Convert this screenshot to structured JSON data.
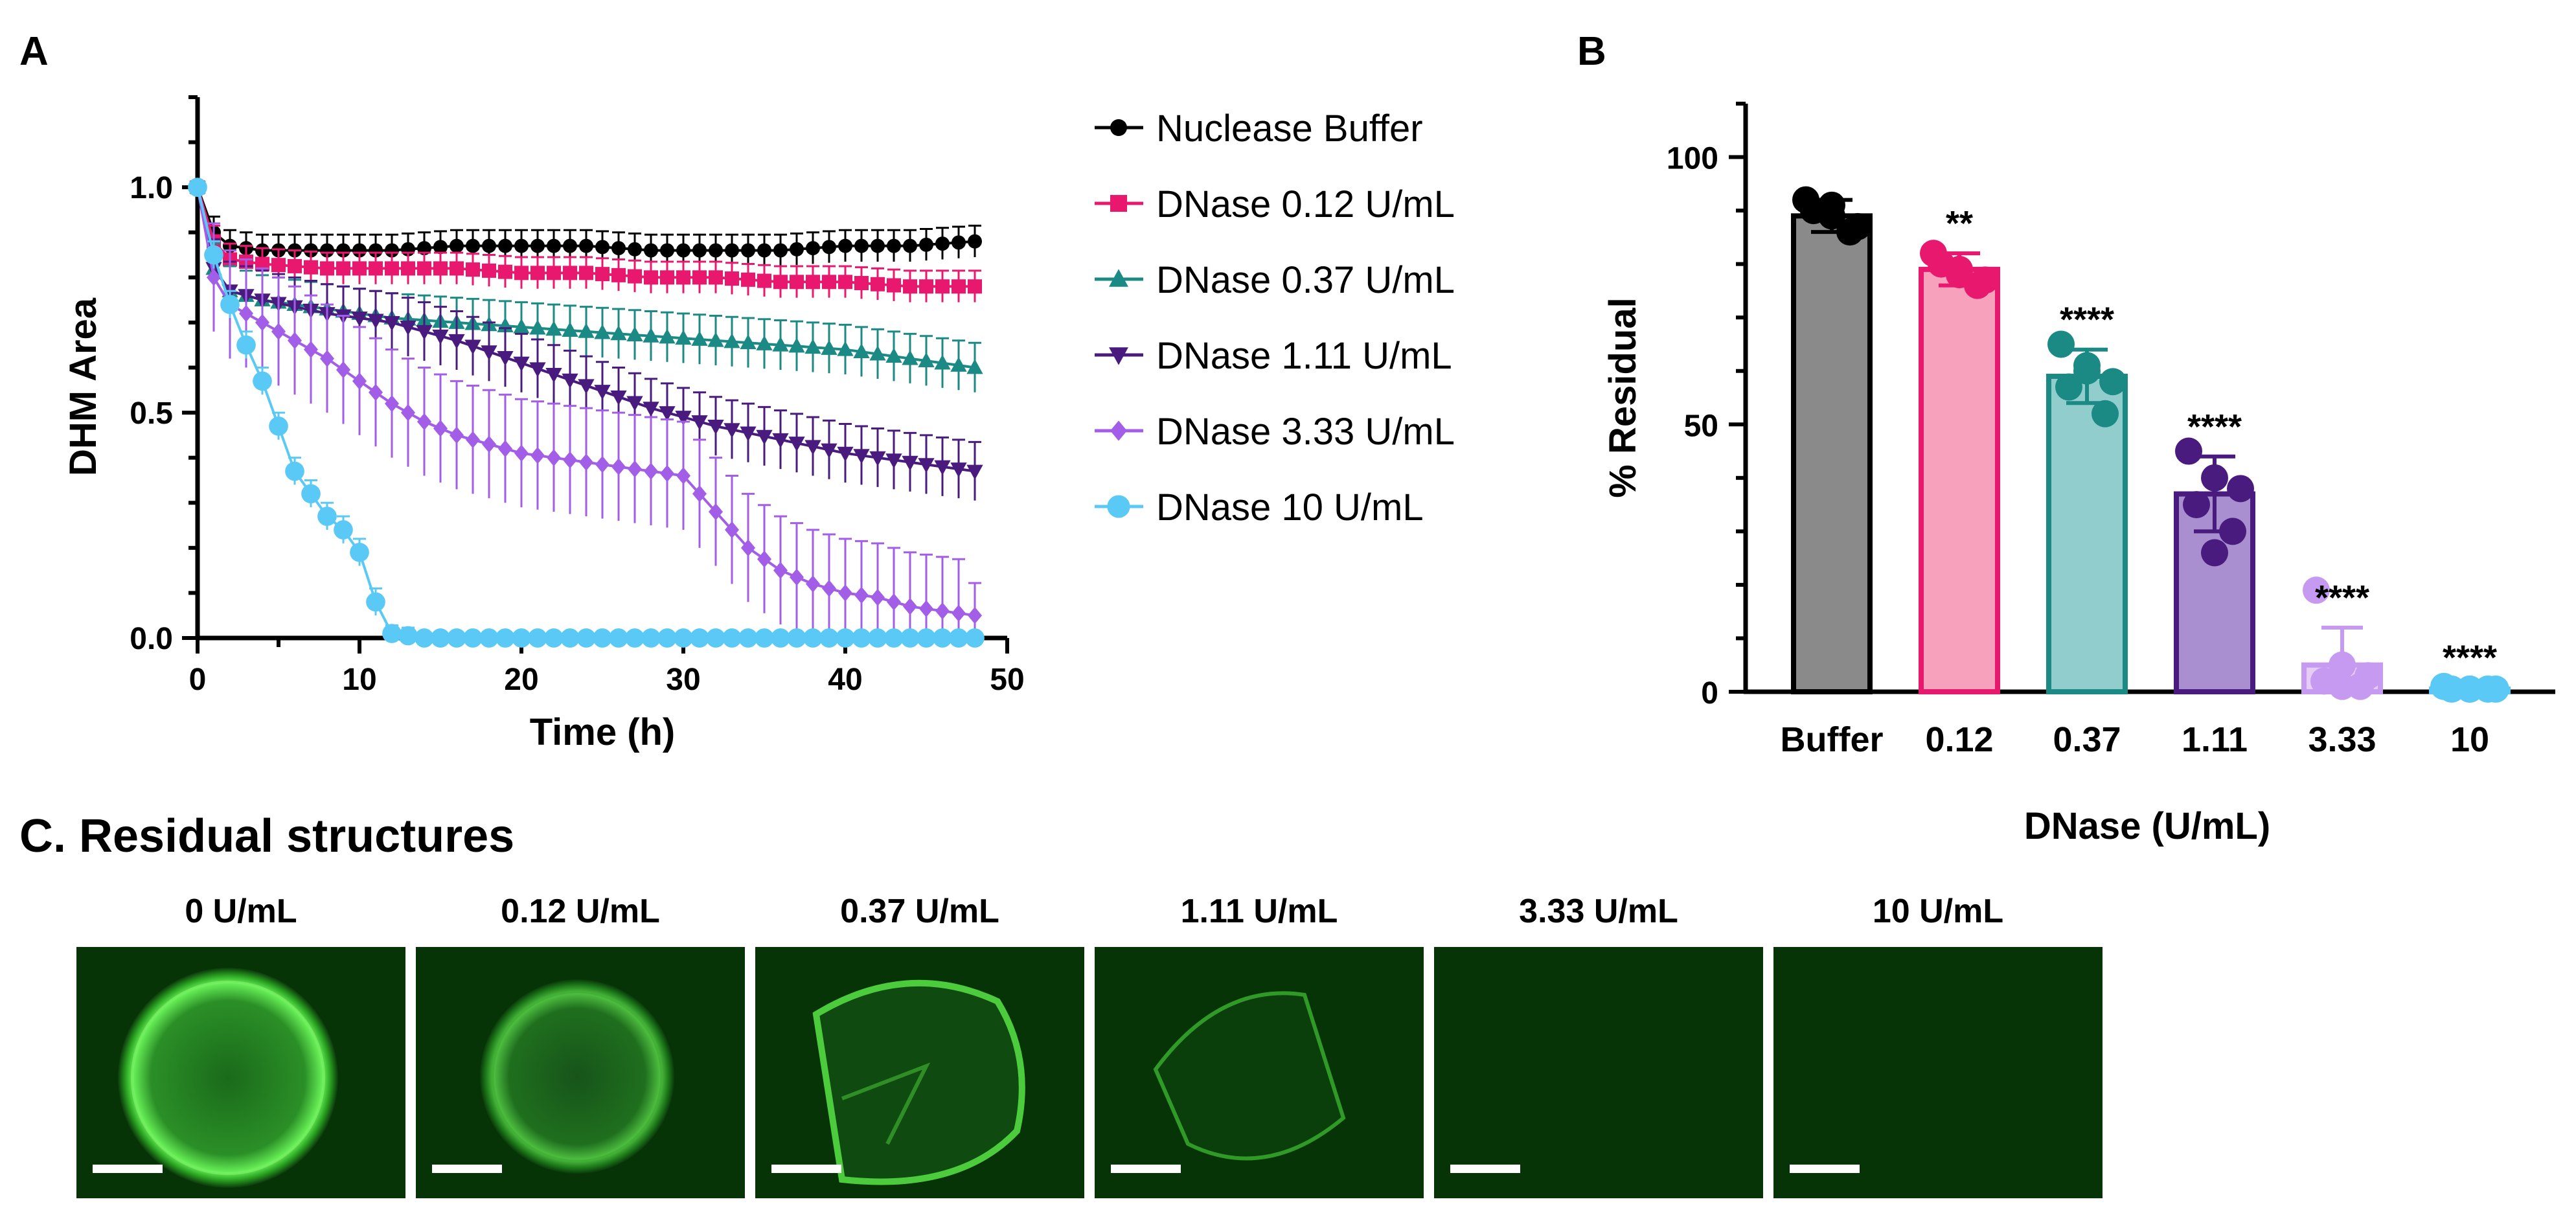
{
  "figure": {
    "panel_a": "A",
    "panel_b": "B",
    "section_c_title": "C. Residual structures"
  },
  "chart_data": [
    {
      "type": "line",
      "panel": "A",
      "title": "",
      "xlabel": "Time (h)",
      "ylabel": "DHM Area",
      "xlim": [
        0,
        50
      ],
      "ylim": [
        0,
        1.2
      ],
      "x_ticks": [
        "0",
        "10",
        "20",
        "30",
        "40",
        "50"
      ],
      "y_ticks": [
        "0.0",
        "0.5",
        "1.0"
      ],
      "legend_position": "right",
      "series": [
        {
          "name": "Nuclease Buffer",
          "marker": "circle",
          "color": "#000000",
          "points": [
            [
              0,
              1.0
            ],
            [
              1,
              0.9
            ],
            [
              2,
              0.87
            ],
            [
              4,
              0.86
            ],
            [
              8,
              0.86
            ],
            [
              12,
              0.86
            ],
            [
              16,
              0.87
            ],
            [
              20,
              0.87
            ],
            [
              24,
              0.87
            ],
            [
              28,
              0.86
            ],
            [
              32,
              0.86
            ],
            [
              36,
              0.86
            ],
            [
              40,
              0.87
            ],
            [
              44,
              0.87
            ],
            [
              48,
              0.88
            ]
          ],
          "err": 0.035
        },
        {
          "name": "DNase 0.12 U/mL",
          "marker": "square",
          "color": "#e8186f",
          "points": [
            [
              0,
              1.0
            ],
            [
              1,
              0.88
            ],
            [
              2,
              0.84
            ],
            [
              4,
              0.83
            ],
            [
              8,
              0.82
            ],
            [
              12,
              0.82
            ],
            [
              16,
              0.82
            ],
            [
              20,
              0.81
            ],
            [
              24,
              0.81
            ],
            [
              28,
              0.8
            ],
            [
              32,
              0.8
            ],
            [
              36,
              0.79
            ],
            [
              40,
              0.79
            ],
            [
              44,
              0.78
            ],
            [
              48,
              0.78
            ]
          ],
          "err": 0.035
        },
        {
          "name": "DNase 0.37 U/mL",
          "marker": "triangle-up",
          "color": "#1b8a85",
          "points": [
            [
              0,
              1.0
            ],
            [
              1,
              0.82
            ],
            [
              2,
              0.77
            ],
            [
              4,
              0.75
            ],
            [
              8,
              0.73
            ],
            [
              12,
              0.71
            ],
            [
              16,
              0.7
            ],
            [
              20,
              0.69
            ],
            [
              24,
              0.68
            ],
            [
              28,
              0.67
            ],
            [
              32,
              0.66
            ],
            [
              36,
              0.65
            ],
            [
              40,
              0.64
            ],
            [
              44,
              0.62
            ],
            [
              48,
              0.6
            ]
          ],
          "err": 0.055
        },
        {
          "name": "DNase 1.11 U/mL",
          "marker": "triangle-down",
          "color": "#4a1b7e",
          "points": [
            [
              0,
              1.0
            ],
            [
              1,
              0.82
            ],
            [
              2,
              0.77
            ],
            [
              4,
              0.75
            ],
            [
              8,
              0.72
            ],
            [
              12,
              0.7
            ],
            [
              16,
              0.66
            ],
            [
              20,
              0.61
            ],
            [
              24,
              0.56
            ],
            [
              28,
              0.51
            ],
            [
              32,
              0.47
            ],
            [
              36,
              0.44
            ],
            [
              40,
              0.41
            ],
            [
              44,
              0.39
            ],
            [
              48,
              0.37
            ]
          ],
          "err": 0.065
        },
        {
          "name": "DNase 3.33 U/mL",
          "marker": "diamond",
          "color": "#a35ee8",
          "points": [
            [
              0,
              1.0
            ],
            [
              1,
              0.8
            ],
            [
              2,
              0.74
            ],
            [
              4,
              0.7
            ],
            [
              6,
              0.66
            ],
            [
              8,
              0.62
            ],
            [
              10,
              0.57
            ],
            [
              12,
              0.52
            ],
            [
              14,
              0.48
            ],
            [
              16,
              0.45
            ],
            [
              18,
              0.43
            ],
            [
              20,
              0.41
            ],
            [
              22,
              0.4
            ],
            [
              24,
              0.39
            ],
            [
              26,
              0.38
            ],
            [
              28,
              0.37
            ],
            [
              30,
              0.36
            ],
            [
              32,
              0.28
            ],
            [
              34,
              0.2
            ],
            [
              36,
              0.15
            ],
            [
              38,
              0.12
            ],
            [
              40,
              0.1
            ],
            [
              42,
              0.09
            ],
            [
              44,
              0.07
            ],
            [
              46,
              0.06
            ],
            [
              48,
              0.05
            ]
          ],
          "err": 0.12
        },
        {
          "name": "DNase 10 U/mL",
          "marker": "circle-large",
          "color": "#5bc9f5",
          "points": [
            [
              0,
              1.0
            ],
            [
              1,
              0.85
            ],
            [
              2,
              0.74
            ],
            [
              3,
              0.65
            ],
            [
              4,
              0.57
            ],
            [
              5,
              0.47
            ],
            [
              6,
              0.37
            ],
            [
              7,
              0.32
            ],
            [
              8,
              0.27
            ],
            [
              9,
              0.24
            ],
            [
              10,
              0.19
            ],
            [
              11,
              0.08
            ],
            [
              12,
              0.01
            ],
            [
              14,
              0.0
            ],
            [
              16,
              0.0
            ],
            [
              18,
              0.0
            ],
            [
              20,
              0.0
            ],
            [
              22,
              0.0
            ],
            [
              24,
              0.0
            ],
            [
              26,
              0.0
            ],
            [
              28,
              0.0
            ],
            [
              30,
              0.0
            ],
            [
              32,
              0.0
            ],
            [
              34,
              0.0
            ],
            [
              36,
              0.0
            ],
            [
              38,
              0.0
            ],
            [
              40,
              0.0
            ],
            [
              42,
              0.0
            ],
            [
              44,
              0.0
            ],
            [
              46,
              0.0
            ],
            [
              48,
              0.0
            ]
          ],
          "err": 0.03
        }
      ]
    },
    {
      "type": "bar",
      "panel": "B",
      "title": "",
      "xlabel": "DNase (U/mL)",
      "ylabel": "% Residual",
      "ylim": [
        0,
        110
      ],
      "y_ticks": [
        "0",
        "50",
        "100"
      ],
      "categories": [
        "Buffer",
        "0.12",
        "0.37",
        "1.11",
        "3.33",
        "10"
      ],
      "values": [
        89,
        79,
        59,
        37,
        5,
        0.5
      ],
      "errors": [
        3,
        3,
        5,
        7,
        7,
        0.3
      ],
      "significance": [
        "",
        "**",
        "****",
        "****",
        "****",
        "****"
      ],
      "fill_colors": [
        "#8a8a8a",
        "#f7a1bd",
        "#92cdcd",
        "#a98fcf",
        "#e5cdf6",
        "#d9f1fb"
      ],
      "edge_colors": [
        "#000000",
        "#e8186f",
        "#1b8a85",
        "#4a1b7e",
        "#c79af1",
        "#5bc9f5"
      ],
      "dot_colors": [
        "#000000",
        "#e8186f",
        "#1b8a85",
        "#4a1b7e",
        "#c79af1",
        "#5bc9f5"
      ],
      "points": [
        [
          92,
          89,
          87,
          90,
          86,
          91
        ],
        [
          82,
          79,
          77,
          80,
          76,
          78
        ],
        [
          65,
          60,
          58,
          57,
          52,
          61
        ],
        [
          45,
          40,
          38,
          35,
          30,
          26
        ],
        [
          19,
          5,
          3,
          2,
          1,
          1
        ],
        [
          1,
          0.5,
          0.5,
          0.5,
          0.5,
          0.5
        ]
      ]
    }
  ],
  "residual_images": {
    "items": [
      {
        "label": "0 U/mL",
        "state": "intact"
      },
      {
        "label": "0.12 U/mL",
        "state": "mostly-intact"
      },
      {
        "label": "0.37 U/mL",
        "state": "fragmented"
      },
      {
        "label": "1.11 U/mL",
        "state": "faint-fragment"
      },
      {
        "label": "3.33 U/mL",
        "state": "empty"
      },
      {
        "label": "10 U/mL",
        "state": "empty"
      }
    ]
  }
}
